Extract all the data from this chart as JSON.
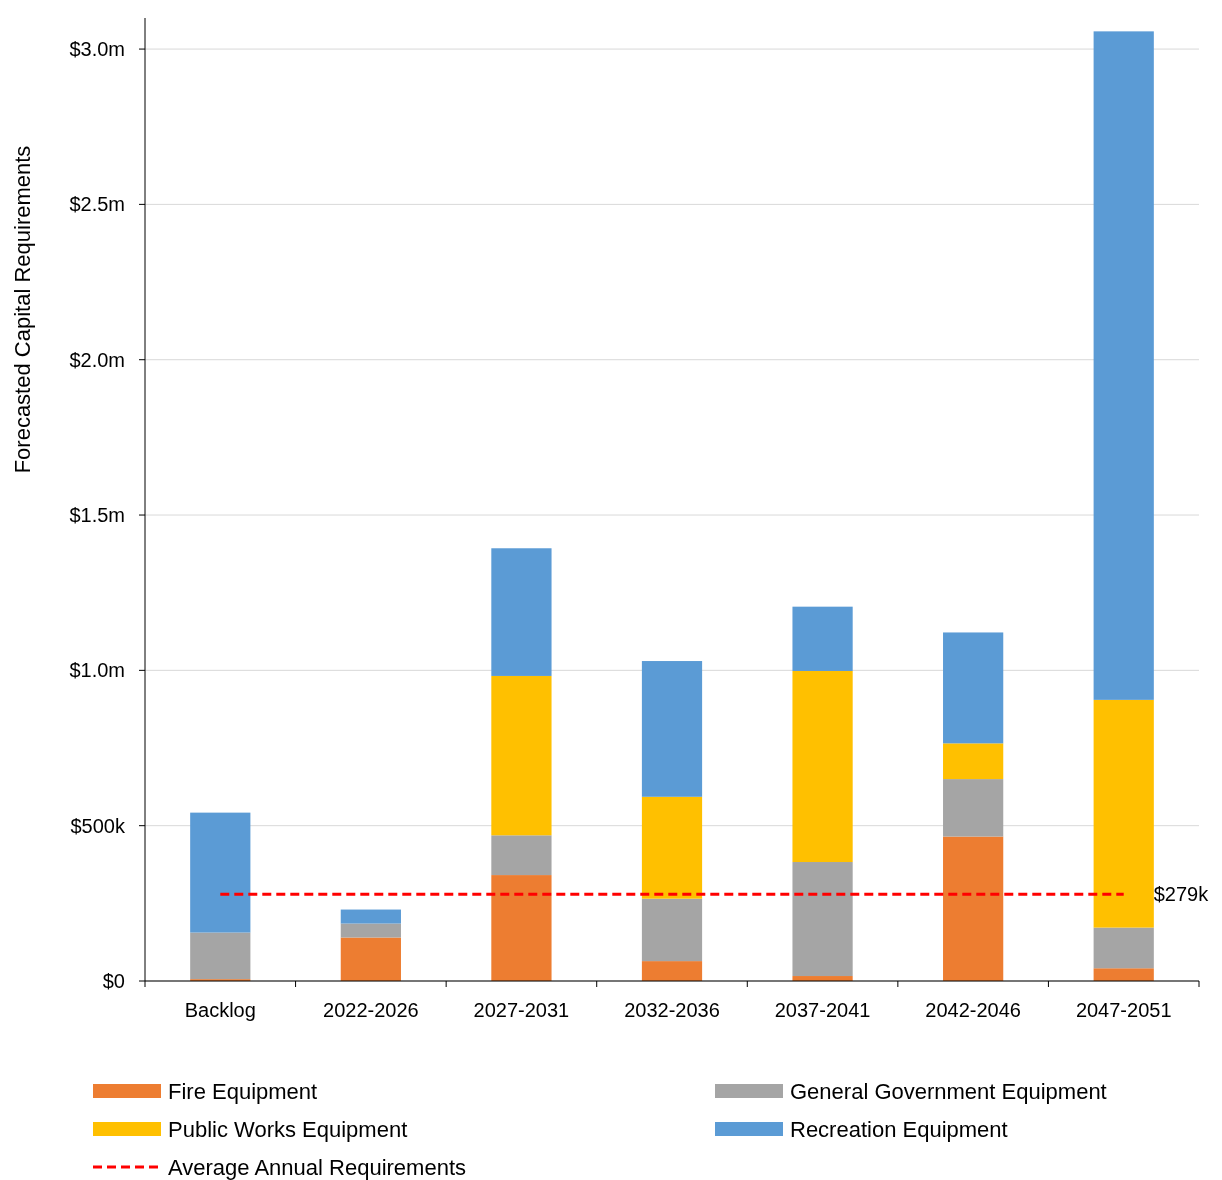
{
  "chart_data": {
    "type": "bar",
    "ylabel": "Forecasted Capital Requirements",
    "stacked": true,
    "categories": [
      "Backlog",
      "2022-2026",
      "2027-2031",
      "2032-2036",
      "2037-2041",
      "2042-2046",
      "2047-2051"
    ],
    "series": [
      {
        "name": "Fire Equipment",
        "color": "#ed7d31",
        "values": [
          6000,
          140000,
          341000,
          64000,
          16000,
          465000,
          41000
        ]
      },
      {
        "name": "General Government Equipment",
        "color": "#a5a5a5",
        "values": [
          150000,
          45000,
          128000,
          201000,
          367000,
          185000,
          131000
        ]
      },
      {
        "name": "Public Works Equipment",
        "color": "#ffc000",
        "values": [
          0,
          0,
          513000,
          328000,
          615000,
          115000,
          733000
        ]
      },
      {
        "name": "Recreation Equipment",
        "color": "#5b9bd5",
        "values": [
          386000,
          45000,
          411000,
          437000,
          207000,
          357000,
          2152000
        ]
      }
    ],
    "ylim": [
      0,
      3100000
    ],
    "yticks": [
      {
        "value": 0,
        "label": "$0"
      },
      {
        "value": 500000,
        "label": "$500k"
      },
      {
        "value": 1000000,
        "label": "$1.0m"
      },
      {
        "value": 1500000,
        "label": "$1.5m"
      },
      {
        "value": 2000000,
        "label": "$2.0m"
      },
      {
        "value": 2500000,
        "label": "$2.5m"
      },
      {
        "value": 3000000,
        "label": "$3.0m"
      }
    ],
    "grid": "y",
    "legend": "bottom",
    "ref_lines": [
      {
        "axis": "y",
        "value": 279000,
        "label": "Average Annual Requirements",
        "color": "#ff0000",
        "line_style": "dashed"
      }
    ],
    "annotations": [
      {
        "text": "$279k",
        "x": "2047-2051",
        "y": 279000
      }
    ]
  }
}
